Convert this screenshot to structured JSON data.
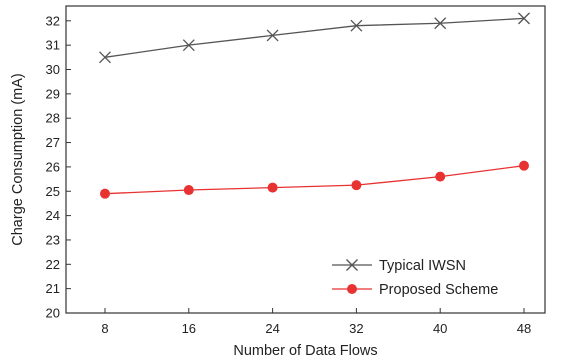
{
  "chart_data": {
    "type": "line",
    "xlabel": "Number of Data Flows",
    "ylabel": "Charge Consumption (mA)",
    "categories": [
      "8",
      "16",
      "24",
      "32",
      "40",
      "48"
    ],
    "x": [
      8,
      16,
      24,
      32,
      40,
      48
    ],
    "ylim": [
      20,
      32.3
    ],
    "yticks": [
      "20",
      "21",
      "22",
      "23",
      "24",
      "25",
      "26",
      "27",
      "28",
      "29",
      "30",
      "31",
      "32"
    ],
    "grid": false,
    "legend_position": "bottom-right",
    "series": [
      {
        "name": "Typical IWSN",
        "marker": "x",
        "color": "#555555",
        "values": [
          30.5,
          31.0,
          31.4,
          31.8,
          31.9,
          32.1
        ]
      },
      {
        "name": "Proposed Scheme",
        "marker": "circle",
        "color": "#e83232",
        "values": [
          24.9,
          25.05,
          25.15,
          25.25,
          25.6,
          26.05
        ]
      }
    ]
  }
}
